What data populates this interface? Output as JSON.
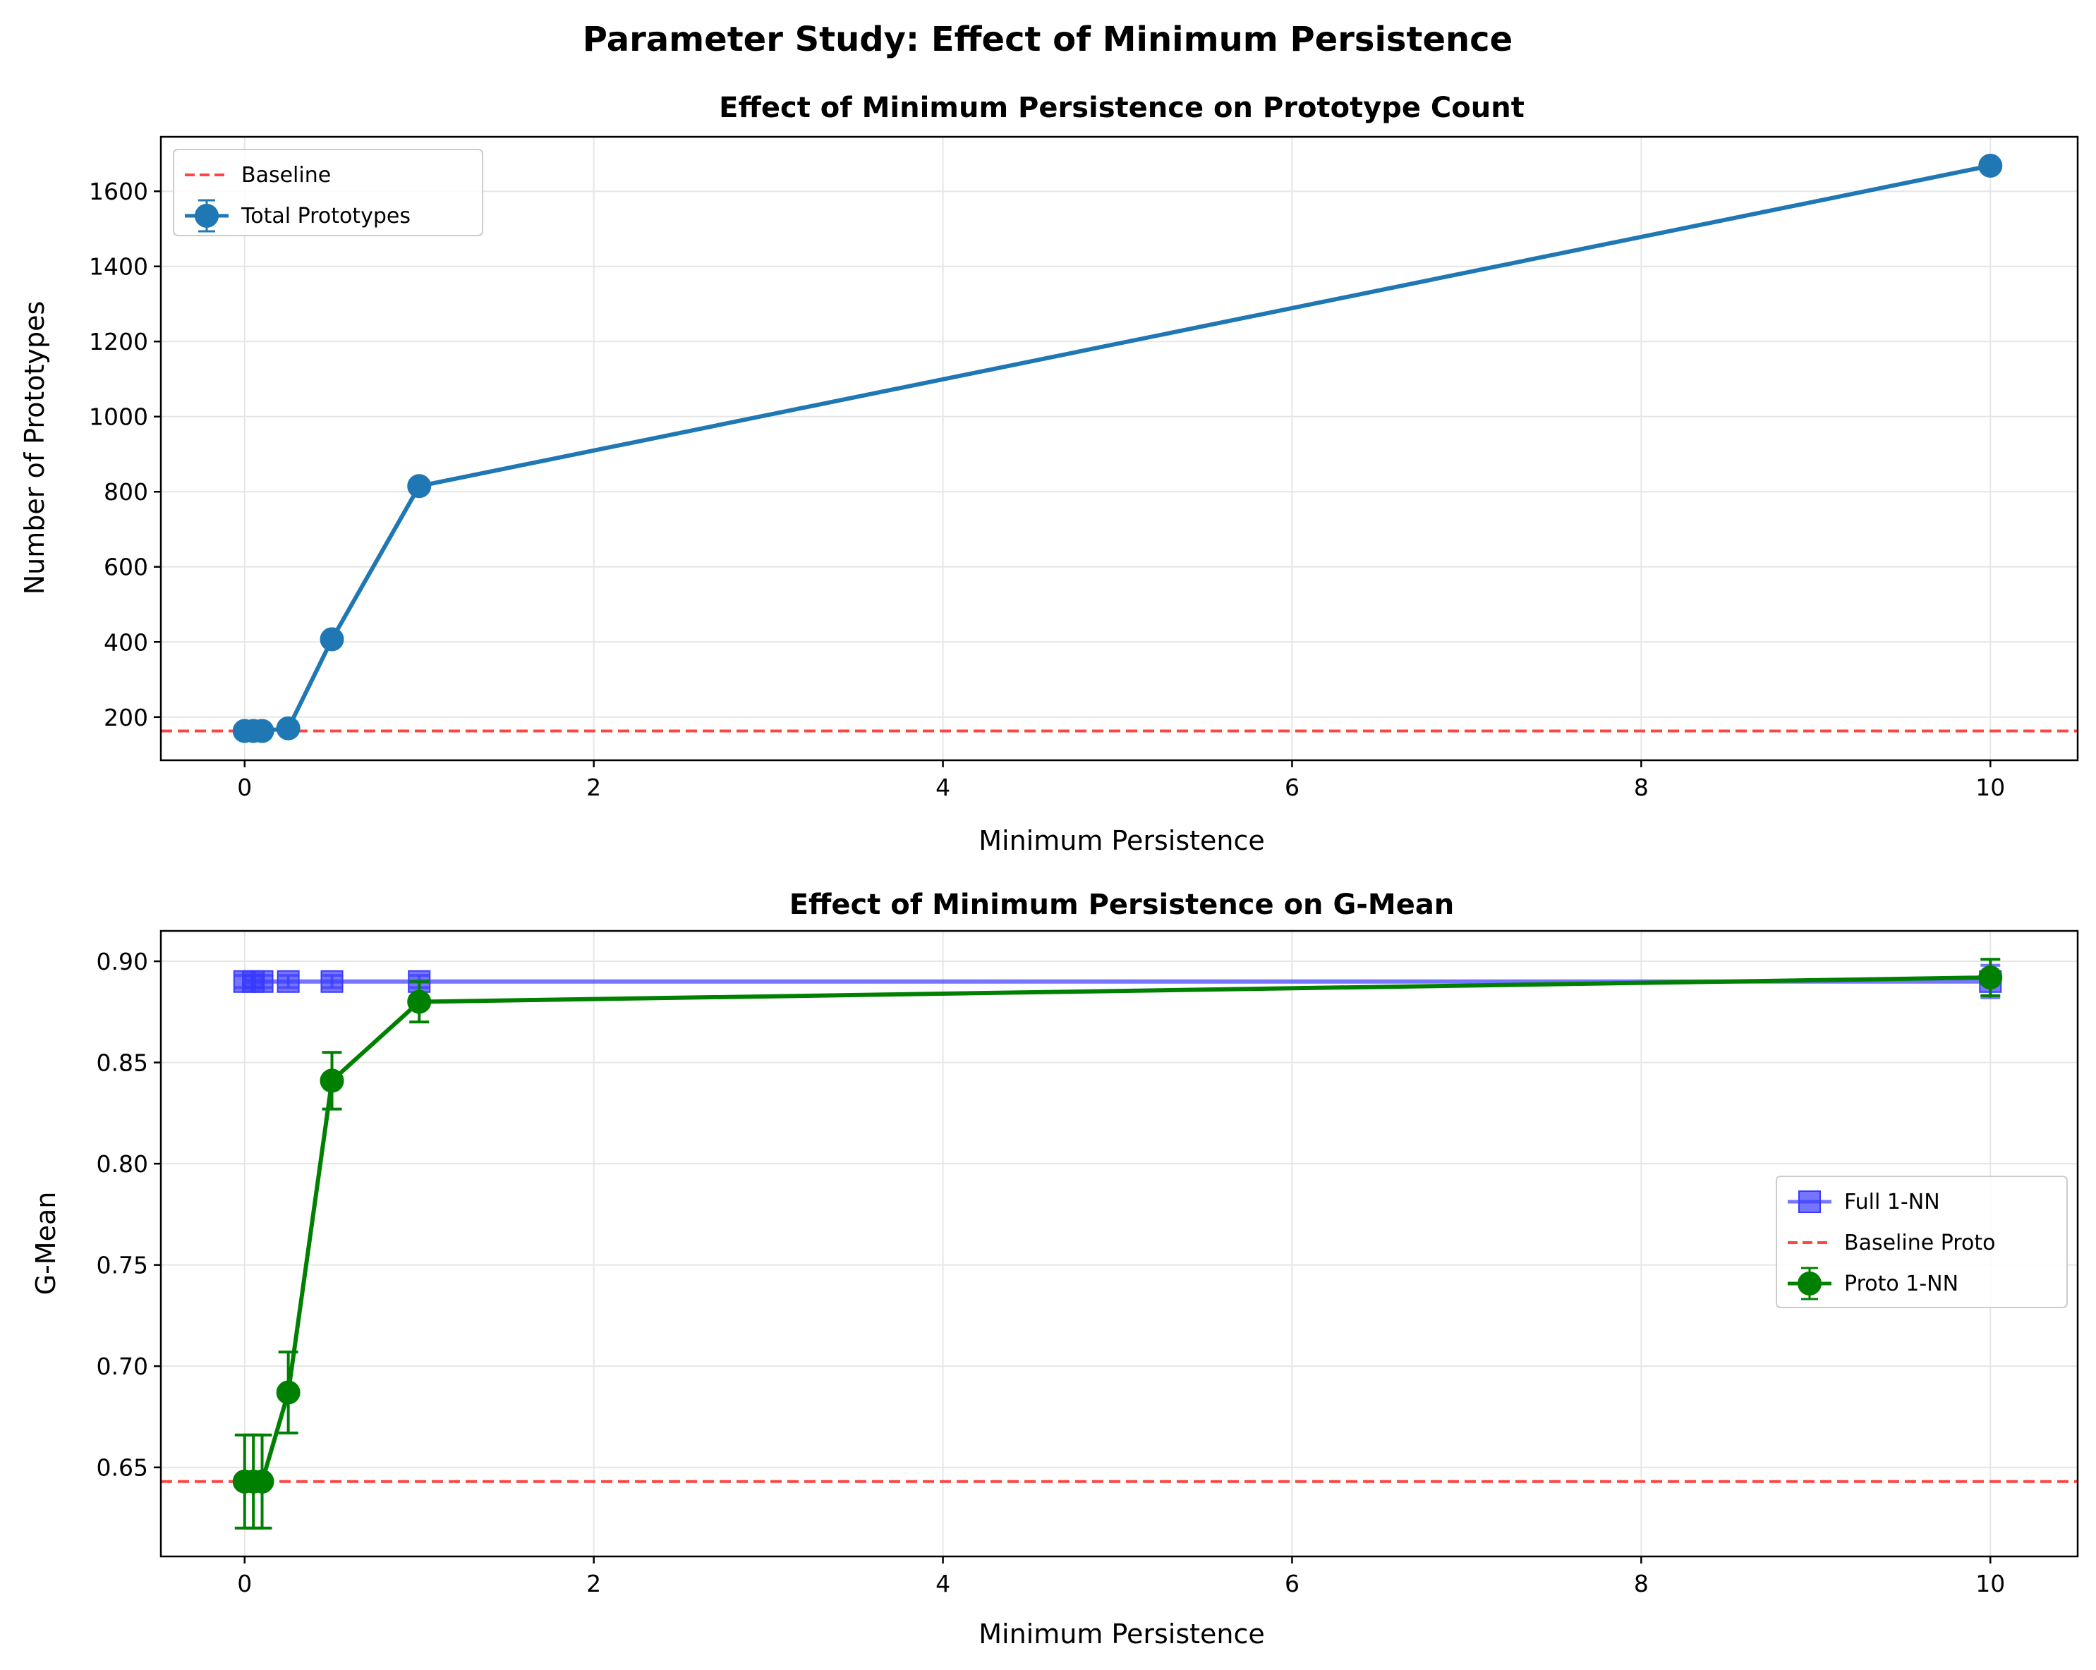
{
  "figure": {
    "suptitle": "Parameter Study: Effect of Minimum Persistence"
  },
  "colors": {
    "baseline": "#ff4444",
    "prototypes": "#1f77b4",
    "full_1nn": "#3a3aff",
    "proto_1nn": "#008000",
    "grid": "#e6e6e6"
  },
  "chart_data": [
    {
      "type": "line",
      "title": "Effect of Minimum Persistence on Prototype Count",
      "xlabel": "Minimum Persistence",
      "ylabel": "Number of Prototypes",
      "xlim": [
        -0.48,
        10.5
      ],
      "ylim": [
        85,
        1745
      ],
      "xticks": [
        0,
        2,
        4,
        6,
        8,
        10
      ],
      "yticks": [
        200,
        400,
        600,
        800,
        1000,
        1200,
        1400,
        1600
      ],
      "grid": true,
      "legend_position": "top-left",
      "baseline": {
        "name": "Baseline",
        "value": 163
      },
      "series": [
        {
          "name": "Total Prototypes",
          "marker": "circle",
          "x": [
            0,
            0.05,
            0.1,
            0.25,
            0.5,
            1,
            10
          ],
          "values": [
            163,
            163,
            163,
            170,
            407,
            815,
            1668
          ],
          "errors": [
            3,
            3,
            3,
            3,
            6,
            5,
            5
          ]
        }
      ]
    },
    {
      "type": "line",
      "title": "Effect of Minimum Persistence on G-Mean",
      "xlabel": "Minimum Persistence",
      "ylabel": "G-Mean",
      "xlim": [
        -0.48,
        10.5
      ],
      "ylim": [
        0.606,
        0.915
      ],
      "xticks": [
        0,
        2,
        4,
        6,
        8,
        10
      ],
      "yticks": [
        0.65,
        0.7,
        0.75,
        0.8,
        0.85,
        0.9
      ],
      "grid": true,
      "legend_position": "center-right",
      "baseline": {
        "name": "Baseline Proto",
        "value": 0.643
      },
      "series": [
        {
          "name": "Full 1-NN",
          "marker": "square",
          "x": [
            0,
            0.05,
            0.1,
            0.25,
            0.5,
            1,
            10
          ],
          "values": [
            0.89,
            0.89,
            0.89,
            0.89,
            0.89,
            0.89,
            0.89
          ],
          "errors": [
            0.003,
            0.003,
            0.003,
            0.003,
            0.003,
            0.003,
            0.008
          ]
        },
        {
          "name": "Proto 1-NN",
          "marker": "circle",
          "x": [
            0,
            0.05,
            0.1,
            0.25,
            0.5,
            1,
            10
          ],
          "values": [
            0.643,
            0.643,
            0.643,
            0.687,
            0.841,
            0.88,
            0.892
          ],
          "errors": [
            0.023,
            0.023,
            0.023,
            0.02,
            0.014,
            0.01,
            0.009
          ]
        }
      ]
    }
  ]
}
